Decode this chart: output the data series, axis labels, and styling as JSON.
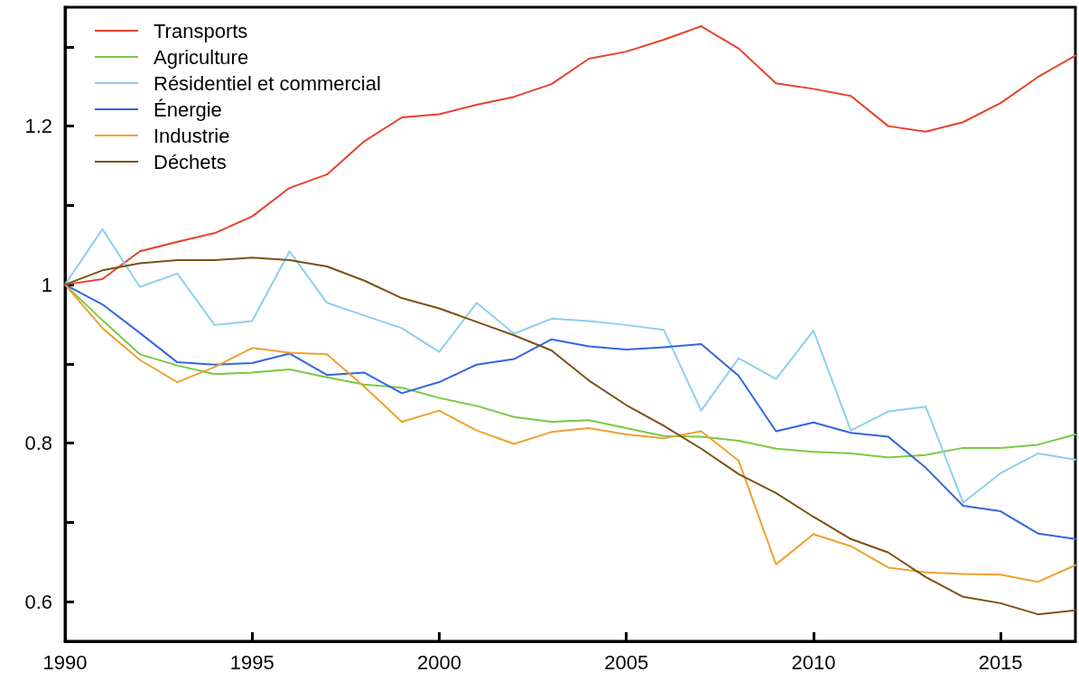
{
  "chart_data": {
    "type": "line",
    "x": [
      1990,
      1991,
      1992,
      1993,
      1994,
      1995,
      1996,
      1997,
      1998,
      1999,
      2000,
      2001,
      2002,
      2003,
      2004,
      2005,
      2006,
      2007,
      2008,
      2009,
      2010,
      2011,
      2012,
      2013,
      2014,
      2015,
      2016,
      2017
    ],
    "xlim": [
      1990,
      2017
    ],
    "xticks": [
      1990,
      1995,
      2000,
      2005,
      2010,
      2015
    ],
    "ylim": [
      0.55,
      1.35
    ],
    "yticks": [
      0.6,
      {
        "value": 0.7,
        "label": null
      },
      0.8,
      {
        "value": 0.9,
        "label": null
      },
      1,
      {
        "value": 1.1,
        "label": null
      },
      1.2,
      {
        "value": 1.3,
        "label": null
      }
    ],
    "grid": false,
    "legend": "top left",
    "marker": "none",
    "line_style": "solid",
    "series": [
      {
        "name": "Transports",
        "color": "#e8412c",
        "values": [
          1,
          1.007,
          1.042,
          1.054,
          1.065,
          1.086,
          1.122,
          1.139,
          1.181,
          1.211,
          1.215,
          1.227,
          1.237,
          1.253,
          1.285,
          1.294,
          1.309,
          1.326,
          1.298,
          1.254,
          1.247,
          1.238,
          1.2,
          1.193,
          1.205,
          1.229,
          1.262,
          1.289
        ]
      },
      {
        "name": "Agriculture",
        "color": "#7ac943",
        "values": [
          1,
          0.955,
          0.912,
          0.898,
          0.887,
          0.889,
          0.893,
          0.883,
          0.874,
          0.87,
          0.857,
          0.847,
          0.833,
          0.827,
          0.829,
          0.819,
          0.809,
          0.808,
          0.803,
          0.793,
          0.789,
          0.787,
          0.782,
          0.785,
          0.794,
          0.794,
          0.798,
          0.811
        ]
      },
      {
        "name": "Résidentiel et commercial",
        "color": "#8ccfee",
        "values": [
          1,
          1.07,
          0.997,
          1.014,
          0.949,
          0.954,
          1.042,
          0.977,
          0.961,
          0.945,
          0.915,
          0.977,
          0.938,
          0.957,
          0.954,
          0.949,
          0.943,
          0.841,
          0.907,
          0.881,
          0.942,
          0.816,
          0.84,
          0.846,
          0.725,
          0.762,
          0.787,
          0.779
        ]
      },
      {
        "name": "Énergie",
        "color": "#3366dd",
        "values": [
          1,
          0.975,
          0.939,
          0.902,
          0.899,
          0.901,
          0.913,
          0.886,
          0.889,
          0.863,
          0.877,
          0.899,
          0.906,
          0.931,
          0.922,
          0.918,
          0.921,
          0.925,
          0.885,
          0.815,
          0.826,
          0.813,
          0.808,
          0.769,
          0.721,
          0.714,
          0.686,
          0.679
        ]
      },
      {
        "name": "Industrie",
        "color": "#f0a030",
        "values": [
          1,
          0.945,
          0.905,
          0.877,
          0.896,
          0.92,
          0.914,
          0.912,
          0.871,
          0.827,
          0.841,
          0.816,
          0.799,
          0.814,
          0.819,
          0.811,
          0.806,
          0.815,
          0.778,
          0.647,
          0.685,
          0.67,
          0.643,
          0.637,
          0.635,
          0.634,
          0.625,
          0.646
        ]
      },
      {
        "name": "Déchets",
        "color": "#7a5214",
        "values": [
          1,
          1.018,
          1.027,
          1.031,
          1.031,
          1.034,
          1.031,
          1.023,
          1.005,
          0.983,
          0.97,
          0.953,
          0.936,
          0.917,
          0.879,
          0.848,
          0.822,
          0.793,
          0.761,
          0.737,
          0.707,
          0.679,
          0.662,
          0.631,
          0.606,
          0.598,
          0.584,
          0.589
        ]
      }
    ]
  }
}
